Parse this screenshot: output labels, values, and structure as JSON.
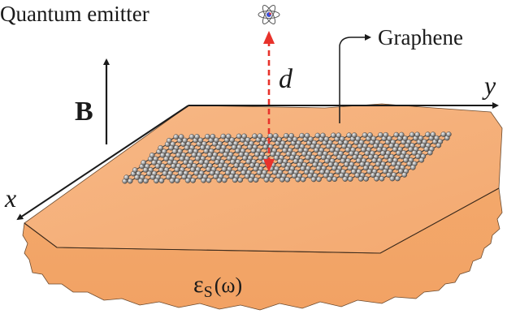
{
  "labels": {
    "emitter": "Quantum emitter",
    "graphene": "Graphene",
    "field": "B",
    "distance": "d",
    "axis_x": "x",
    "axis_y": "y",
    "substrate_symbol": "ε",
    "substrate_subscript": "S",
    "substrate_arg": "(ω)"
  },
  "colors": {
    "substrate_top": "#f6b27c",
    "substrate_side": "#f3a86b",
    "lattice_bond": "#3a3a3a",
    "atom": "#9a9a9a",
    "distance_arrow": "#e8322b",
    "ink": "#1a1a1a"
  },
  "icons": {
    "emitter": "atom-icon"
  }
}
